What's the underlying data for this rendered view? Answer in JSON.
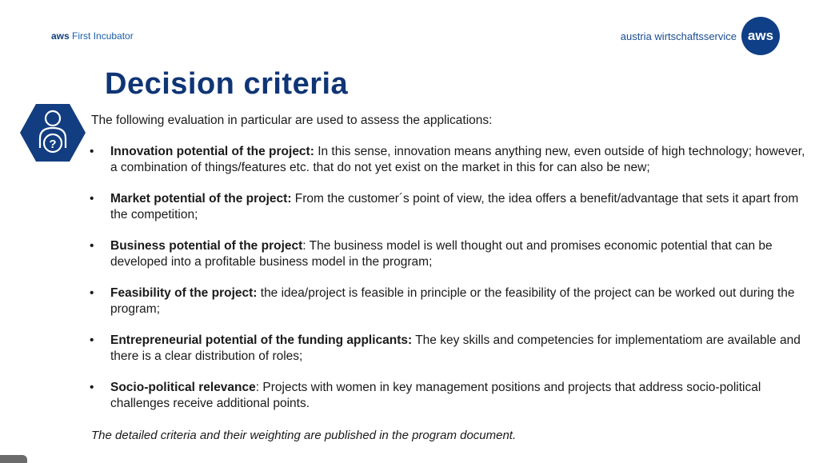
{
  "header": {
    "brand_bold": "aws",
    "brand_rest": " First Incubator",
    "org_name": "austria wirtschaftsservice",
    "logo_text": "aws"
  },
  "title": "Decision criteria",
  "intro": "The following evaluation in particular are used to assess the applications:",
  "criteria": [
    {
      "bullet": "•",
      "lead": "Innovation potential of the project:",
      "text": " In this sense, innovation means anything new, even outside of high technology; however, a combination of things/features etc. that do not yet exist on the market in this for can also be new;"
    },
    {
      "bullet": "•",
      "lead": "Market potential of the project:",
      "text": " From the customer´s point of view, the idea offers a benefit/advantage that sets it apart from the competition;"
    },
    {
      "bullet": "•",
      "lead": "Business potential of the project",
      "text": ": The business model is well thought out and promises economic potential that can be developed into a profitable business model in the program;"
    },
    {
      "bullet": "•",
      "lead": "Feasibility of the project:",
      "text": " the idea/project is feasible in principle or the feasibility of the project can be worked out during the program;"
    },
    {
      "bullet": "•",
      "lead": "Entrepreneurial potential of the funding applicants:",
      "text": " The key skills and competencies for implementatiom are available and there is a clear distribution of roles;"
    },
    {
      "bullet": "•",
      "lead": "Socio-political relevance",
      "text": ": Projects with women in key management positions and projects that address socio-political challenges receive additional points."
    }
  ],
  "footnote": "The detailed criteria and their weighting are published in the program document.",
  "colors": {
    "title": "#0f3575",
    "brand_blue": "#1a5ea8",
    "logo_bg": "#0f3f86",
    "icon_bg": "#123d80"
  },
  "icons": {
    "section_icon": "person-question-hexagon-icon"
  }
}
